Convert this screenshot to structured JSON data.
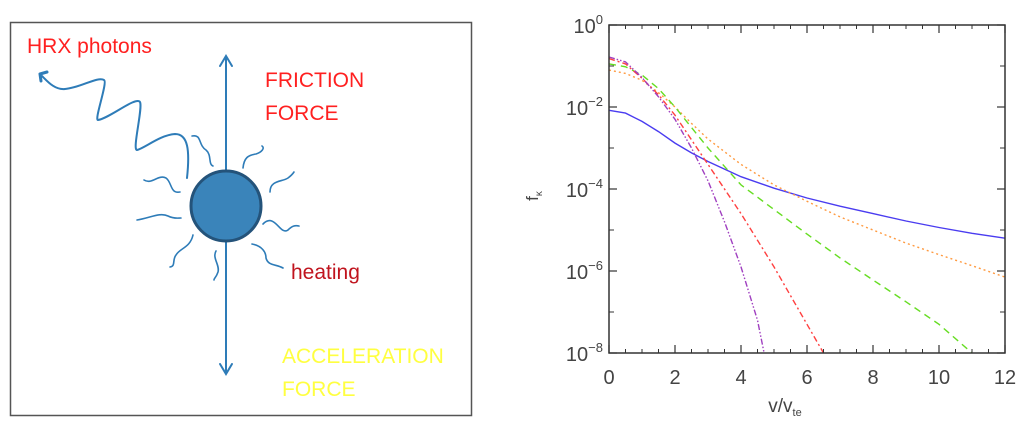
{
  "diagram": {
    "photons_label": "HRX photons",
    "friction_label_1": "FRICTION",
    "friction_label_2": "FORCE",
    "heating_label": "heating",
    "acceleration_label_1": "ACCELERATION",
    "acceleration_label_2": "FORCE",
    "colors": {
      "red": "#ff2020",
      "darkred": "#c0141e",
      "yellow": "#ffff40",
      "blue": "#2e7cb8",
      "particle": "#3a84ba"
    }
  },
  "chart_data": {
    "type": "line",
    "title": "",
    "xlabel": "v/v",
    "xlabel_sub": "te",
    "ylabel": "f",
    "ylabel_sub": "κ",
    "xlim": [
      0,
      12
    ],
    "ylim_log10": [
      -8,
      0
    ],
    "yscale": "log",
    "xticks": [
      "0",
      "2",
      "4",
      "6",
      "8",
      "10",
      "12"
    ],
    "yticks": [
      {
        "base": "10",
        "exp": "0"
      },
      {
        "base": "10",
        "exp": "−2"
      },
      {
        "base": "10",
        "exp": "−4"
      },
      {
        "base": "10",
        "exp": "−6"
      },
      {
        "base": "10",
        "exp": "−8"
      }
    ],
    "series": [
      {
        "name": "solid",
        "color": "#4a3cf0",
        "dash": "",
        "x": [
          0,
          0.5,
          1,
          1.5,
          2,
          2.5,
          3,
          4,
          5,
          6,
          7,
          8,
          9,
          10,
          11,
          12
        ],
        "log10_y": [
          -2.08,
          -2.15,
          -2.35,
          -2.6,
          -2.88,
          -3.12,
          -3.33,
          -3.7,
          -3.98,
          -4.22,
          -4.42,
          -4.6,
          -4.78,
          -4.94,
          -5.08,
          -5.2
        ]
      },
      {
        "name": "dotted",
        "color": "#ff9a40",
        "dash": "2,3",
        "x": [
          0,
          0.5,
          1,
          1.5,
          2,
          2.5,
          3,
          4,
          5,
          6,
          7,
          8,
          9,
          10,
          11,
          12
        ],
        "log10_y": [
          -1.1,
          -1.18,
          -1.35,
          -1.65,
          -2.0,
          -2.4,
          -2.78,
          -3.4,
          -3.9,
          -4.3,
          -4.68,
          -5.0,
          -5.32,
          -5.6,
          -5.87,
          -6.15
        ]
      },
      {
        "name": "dashed",
        "color": "#66dd22",
        "dash": "7,5",
        "x": [
          0,
          0.5,
          1,
          1.5,
          2,
          2.5,
          3,
          4,
          5,
          6,
          7,
          8,
          9,
          10,
          11
        ],
        "log10_y": [
          -0.95,
          -1.02,
          -1.22,
          -1.55,
          -2.0,
          -2.5,
          -3.0,
          -3.9,
          -4.5,
          -5.1,
          -5.68,
          -6.22,
          -6.75,
          -7.3,
          -8.0
        ]
      },
      {
        "name": "dash-dot",
        "color": "#ff4040",
        "dash": "6,3,2,3",
        "x": [
          0,
          0.5,
          1,
          1.5,
          2,
          2.5,
          3,
          4,
          5,
          6,
          6.5
        ],
        "log10_y": [
          -0.82,
          -0.95,
          -1.3,
          -1.7,
          -2.2,
          -2.8,
          -3.4,
          -4.6,
          -5.9,
          -7.3,
          -8.0
        ]
      },
      {
        "name": "dash-dot-dot",
        "color": "#a040c0",
        "dash": "6,2,1.5,2,1.5,2",
        "x": [
          0,
          0.5,
          1,
          1.5,
          2,
          2.5,
          3,
          3.5,
          4,
          4.5,
          4.7
        ],
        "log10_y": [
          -0.78,
          -0.9,
          -1.28,
          -1.75,
          -2.3,
          -3.0,
          -3.8,
          -4.8,
          -5.9,
          -7.2,
          -8.0
        ]
      }
    ]
  }
}
